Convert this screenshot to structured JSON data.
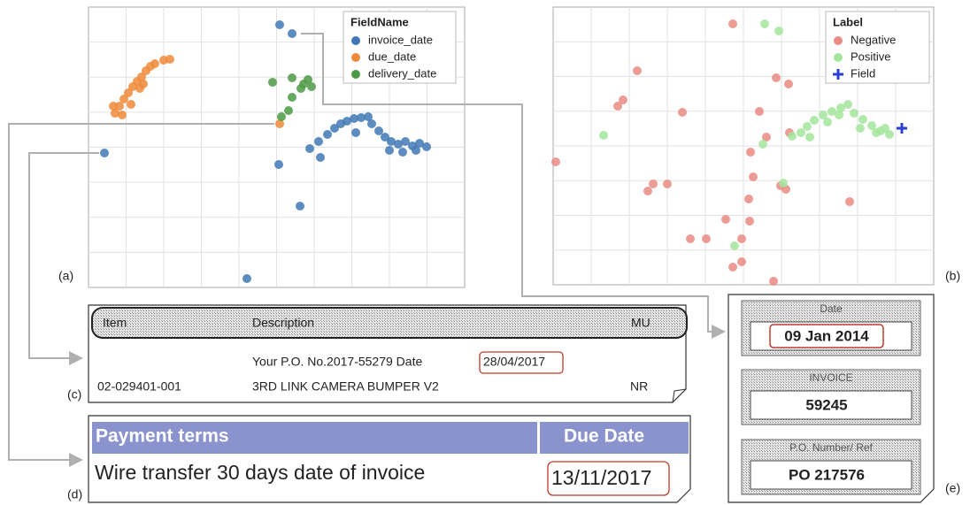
{
  "chart_data": [
    {
      "type": "scatter",
      "label": "(a)",
      "legend_title": "FieldName",
      "xlim": [
        0,
        425
      ],
      "ylim": [
        0,
        317
      ],
      "grid": true,
      "legend": "upper right",
      "series": [
        {
          "name": "invoice_date",
          "color": "#3f78b5",
          "marker": "circle",
          "x": [
            216,
            230,
            18,
            215,
            239,
            179,
            250,
            260,
            270,
            278,
            285,
            292,
            300,
            308,
            316,
            320,
            328,
            335,
            342,
            350,
            358,
            366,
            374,
            382,
            262,
            302,
            340,
            355,
            370
          ],
          "y": [
            297,
            287,
            152,
            139,
            92,
            10,
            157,
            165,
            173,
            180,
            185,
            188,
            191,
            192,
            193,
            185,
            177,
            170,
            165,
            162,
            165,
            160,
            163,
            159,
            147,
            175,
            155,
            153,
            155
          ]
        },
        {
          "name": "due_date",
          "color": "#ef8a3a",
          "marker": "circle",
          "x": [
            30,
            35,
            40,
            45,
            50,
            55,
            60,
            65,
            70,
            75,
            85,
            92,
            38,
            48,
            58,
            62,
            28,
            216
          ],
          "y": [
            197,
            205,
            213,
            220,
            227,
            233,
            238,
            245,
            250,
            253,
            257,
            258,
            195,
            207,
            225,
            230,
            205,
            185
          ]
        },
        {
          "name": "delivery_date",
          "color": "#4c9a45",
          "marker": "circle",
          "x": [
            208,
            230,
            243,
            248,
            240,
            252,
            230,
            226,
            218
          ],
          "y": [
            232,
            237,
            230,
            235,
            225,
            227,
            215,
            200,
            193
          ]
        }
      ]
    },
    {
      "type": "scatter",
      "label": "(b)",
      "legend_title": "Label",
      "xlim": [
        0,
        430
      ],
      "ylim": [
        0,
        314
      ],
      "grid": true,
      "legend": "upper right",
      "series": [
        {
          "name": "Negative",
          "color": "#e98b82",
          "marker": "circle",
          "x": [
            203,
            95,
            79,
            73,
            146,
            233,
            252,
            266,
            3,
            113,
            129,
            107,
            223,
            226,
            221,
            263,
            335,
            195,
            222,
            155,
            173,
            213,
            213,
            203,
            249,
            241,
            267,
            257
          ],
          "y": [
            295,
            242,
            209,
            202,
            195,
            196,
            234,
            227,
            139,
            114,
            114,
            106,
            150,
            122,
            97,
            108,
            94,
            74,
            72,
            52,
            52,
            52,
            26,
            20,
            4,
            167,
            172,
            112
          ]
        },
        {
          "name": "Positive",
          "color": "#a3e59c",
          "marker": "circle",
          "x": [
            239,
            255,
            57,
            237,
            260,
            205,
            280,
            287,
            295,
            305,
            315,
            325,
            333,
            340,
            350,
            360,
            370,
            380,
            290,
            310,
            323,
            347,
            365,
            375,
            270
          ],
          "y": [
            295,
            287,
            169,
            159,
            115,
            44,
            172,
            179,
            186,
            192,
            196,
            200,
            204,
            194,
            187,
            180,
            174,
            170,
            167,
            184,
            192,
            177,
            172,
            177,
            168
          ]
        },
        {
          "name": "Field",
          "color": "#2b3fd6",
          "marker": "plus",
          "x": [
            394
          ],
          "y": [
            177
          ]
        }
      ]
    }
  ],
  "doc_c": {
    "label": "(c)",
    "header": [
      "Item",
      "Description",
      "MU"
    ],
    "line1": "Your  P.O. No.2017-55279 Date",
    "line1_date": "28/04/2017",
    "row": [
      "02-029401-001",
      "3RD LINK CAMERA BUMPER V2",
      "NR"
    ]
  },
  "doc_d": {
    "label": "(d)",
    "header": [
      "Payment terms",
      "Due Date"
    ],
    "row": [
      "Wire transfer 30 days date of invoice",
      "13/11/2017"
    ]
  },
  "doc_e": {
    "label": "(e)",
    "fields": [
      {
        "label": "Date",
        "value": "09 Jan 2014"
      },
      {
        "label": "INVOICE",
        "value": "59245"
      },
      {
        "label": "P.O. Number/ Ref",
        "value": "PO 217576"
      }
    ]
  }
}
